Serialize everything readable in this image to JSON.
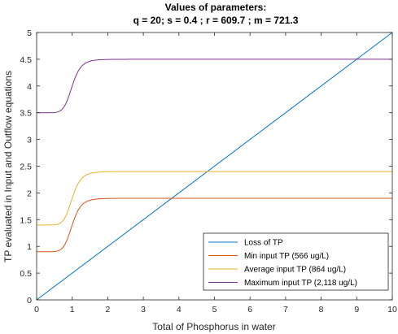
{
  "chart_data": {
    "type": "line",
    "title": "Values of parameters:",
    "subtitle": "q = 20; s = 0.4 ; r = 609.7 ; m = 721.3",
    "xlabel": "Total of Phosphorus in water",
    "ylabel": "TP evaluated in Input and Outflow equations",
    "xlim": [
      0,
      10
    ],
    "ylim": [
      0,
      5
    ],
    "xticks": [
      "0",
      "1",
      "2",
      "3",
      "4",
      "5",
      "6",
      "7",
      "8",
      "9",
      "10"
    ],
    "yticks": [
      "0",
      "0.5",
      "1",
      "1.5",
      "2",
      "2.5",
      "3",
      "3.5",
      "4",
      "4.5",
      "5"
    ],
    "grid": false,
    "legend_position": "bottom-right",
    "series": [
      {
        "name": "Loss of TP",
        "color": "#0072bd",
        "kind": "linear",
        "x": [
          0,
          10
        ],
        "y": [
          0,
          5
        ]
      },
      {
        "name": "Min input TP (566 ug/L)",
        "color": "#d95319",
        "kind": "sigmoid",
        "low": 0.9,
        "high": 1.9
      },
      {
        "name": "Average input TP (864 ug/L)",
        "color": "#edb120",
        "kind": "sigmoid",
        "low": 1.4,
        "high": 2.4
      },
      {
        "name": "Maximum input TP (2,118 ug/L)",
        "color": "#7e2f8e",
        "kind": "sigmoid",
        "low": 3.5,
        "high": 4.5
      }
    ]
  }
}
